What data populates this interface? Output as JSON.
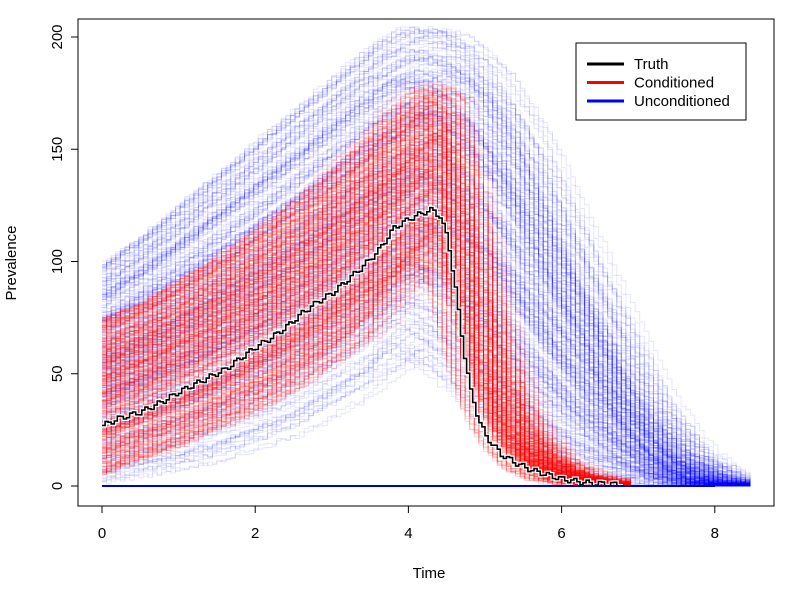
{
  "chart_data": {
    "type": "line",
    "title": "",
    "xlabel": "Time",
    "ylabel": "Prevalence",
    "xlim": [
      0,
      8.6
    ],
    "ylim": [
      0,
      208
    ],
    "x_ticks": [
      0,
      2,
      4,
      6,
      8
    ],
    "y_ticks": [
      0,
      50,
      100,
      150,
      200
    ],
    "grid": false,
    "legend": {
      "placement": "top-right",
      "entries": [
        {
          "label": "Truth",
          "color": "#000000"
        },
        {
          "label": "Conditioned",
          "color": "#ff0000"
        },
        {
          "label": "Unconditioned",
          "color": "#0000ff"
        }
      ]
    },
    "series": [
      {
        "name": "Truth",
        "color": "#000000",
        "x": [
          0,
          0.2,
          0.5,
          0.8,
          1.0,
          1.3,
          1.6,
          1.8,
          2.0,
          2.2,
          2.4,
          2.6,
          2.8,
          3.0,
          3.2,
          3.4,
          3.6,
          3.7,
          3.8,
          4.0,
          4.2,
          4.3,
          4.4,
          4.5,
          4.6,
          4.7,
          4.8,
          4.9,
          5.0,
          5.2,
          5.4,
          5.6,
          5.8,
          6.0,
          6.2,
          6.4,
          6.6,
          6.8
        ],
        "y": [
          27,
          30,
          33,
          38,
          42,
          47,
          52,
          57,
          62,
          66,
          71,
          77,
          82,
          86,
          92,
          98,
          105,
          110,
          115,
          119,
          122,
          123,
          120,
          110,
          88,
          62,
          42,
          30,
          22,
          14,
          10,
          7,
          5,
          3,
          2,
          1,
          1,
          0
        ]
      },
      {
        "name": "Conditioned",
        "color": "#ff0000",
        "x": [
          0,
          0.5,
          1.0,
          1.5,
          2.0,
          2.5,
          3.0,
          3.5,
          4.0,
          4.3,
          4.5,
          4.7,
          4.9,
          5.1,
          5.3,
          5.5,
          5.8,
          6.1,
          6.5,
          6.9
        ],
        "lower": [
          5,
          12,
          18,
          26,
          34,
          44,
          56,
          70,
          90,
          98,
          88,
          62,
          40,
          26,
          16,
          9,
          4,
          2,
          0,
          0
        ],
        "upper": [
          75,
          82,
          92,
          102,
          114,
          126,
          140,
          156,
          172,
          180,
          176,
          138,
          95,
          62,
          40,
          24,
          12,
          5,
          2,
          0
        ]
      },
      {
        "name": "Unconditioned",
        "color": "#0000ff",
        "x": [
          0,
          0.5,
          1.0,
          1.5,
          2.0,
          2.5,
          3.0,
          3.5,
          4.0,
          4.5,
          5.0,
          5.5,
          6.0,
          6.5,
          7.0,
          7.5,
          8.0,
          8.5
        ],
        "lower": [
          0,
          3,
          6,
          10,
          16,
          22,
          32,
          42,
          55,
          45,
          30,
          15,
          6,
          2,
          1,
          0,
          0,
          0
        ],
        "upper": [
          100,
          112,
          126,
          140,
          154,
          168,
          182,
          196,
          205,
          205,
          190,
          160,
          120,
          80,
          40,
          15,
          3,
          0
        ]
      }
    ]
  }
}
